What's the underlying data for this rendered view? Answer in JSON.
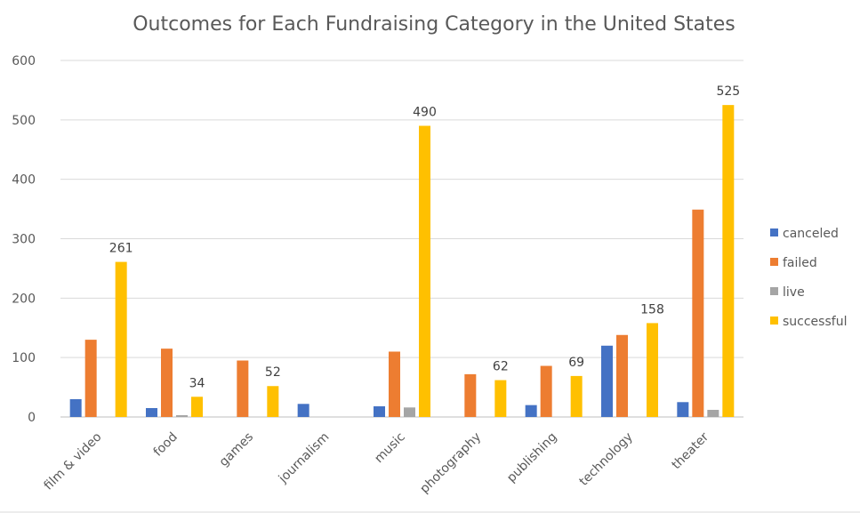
{
  "chart_data": {
    "type": "bar",
    "title": "Outcomes for Each Fundraising Category in the United States",
    "categories": [
      "film & video",
      "food",
      "games",
      "journalism",
      "music",
      "photography",
      "publishing",
      "technology",
      "theater"
    ],
    "series": [
      {
        "name": "canceled",
        "color": "#4472C4",
        "values": [
          30,
          15,
          0,
          22,
          18,
          0,
          20,
          120,
          25
        ]
      },
      {
        "name": "failed",
        "color": "#ED7D31",
        "values": [
          130,
          115,
          95,
          0,
          110,
          72,
          86,
          138,
          349
        ]
      },
      {
        "name": "live",
        "color": "#A5A5A5",
        "values": [
          0,
          3,
          0,
          0,
          16,
          0,
          0,
          0,
          12
        ]
      },
      {
        "name": "successful",
        "color": "#FFC000",
        "values": [
          261,
          34,
          52,
          0,
          490,
          62,
          69,
          158,
          525
        ]
      }
    ],
    "data_labels": {
      "series": "successful",
      "values": [
        261,
        34,
        52,
        null,
        490,
        62,
        69,
        158,
        525
      ]
    },
    "ylim": [
      0,
      600
    ],
    "yticks": [
      0,
      100,
      200,
      300,
      400,
      500,
      600
    ],
    "ytick_labels": [
      "0",
      "100",
      "200",
      "300",
      "400",
      "500",
      "600"
    ],
    "grid": true,
    "legend_position": "right",
    "xlabel": "",
    "ylabel": ""
  }
}
